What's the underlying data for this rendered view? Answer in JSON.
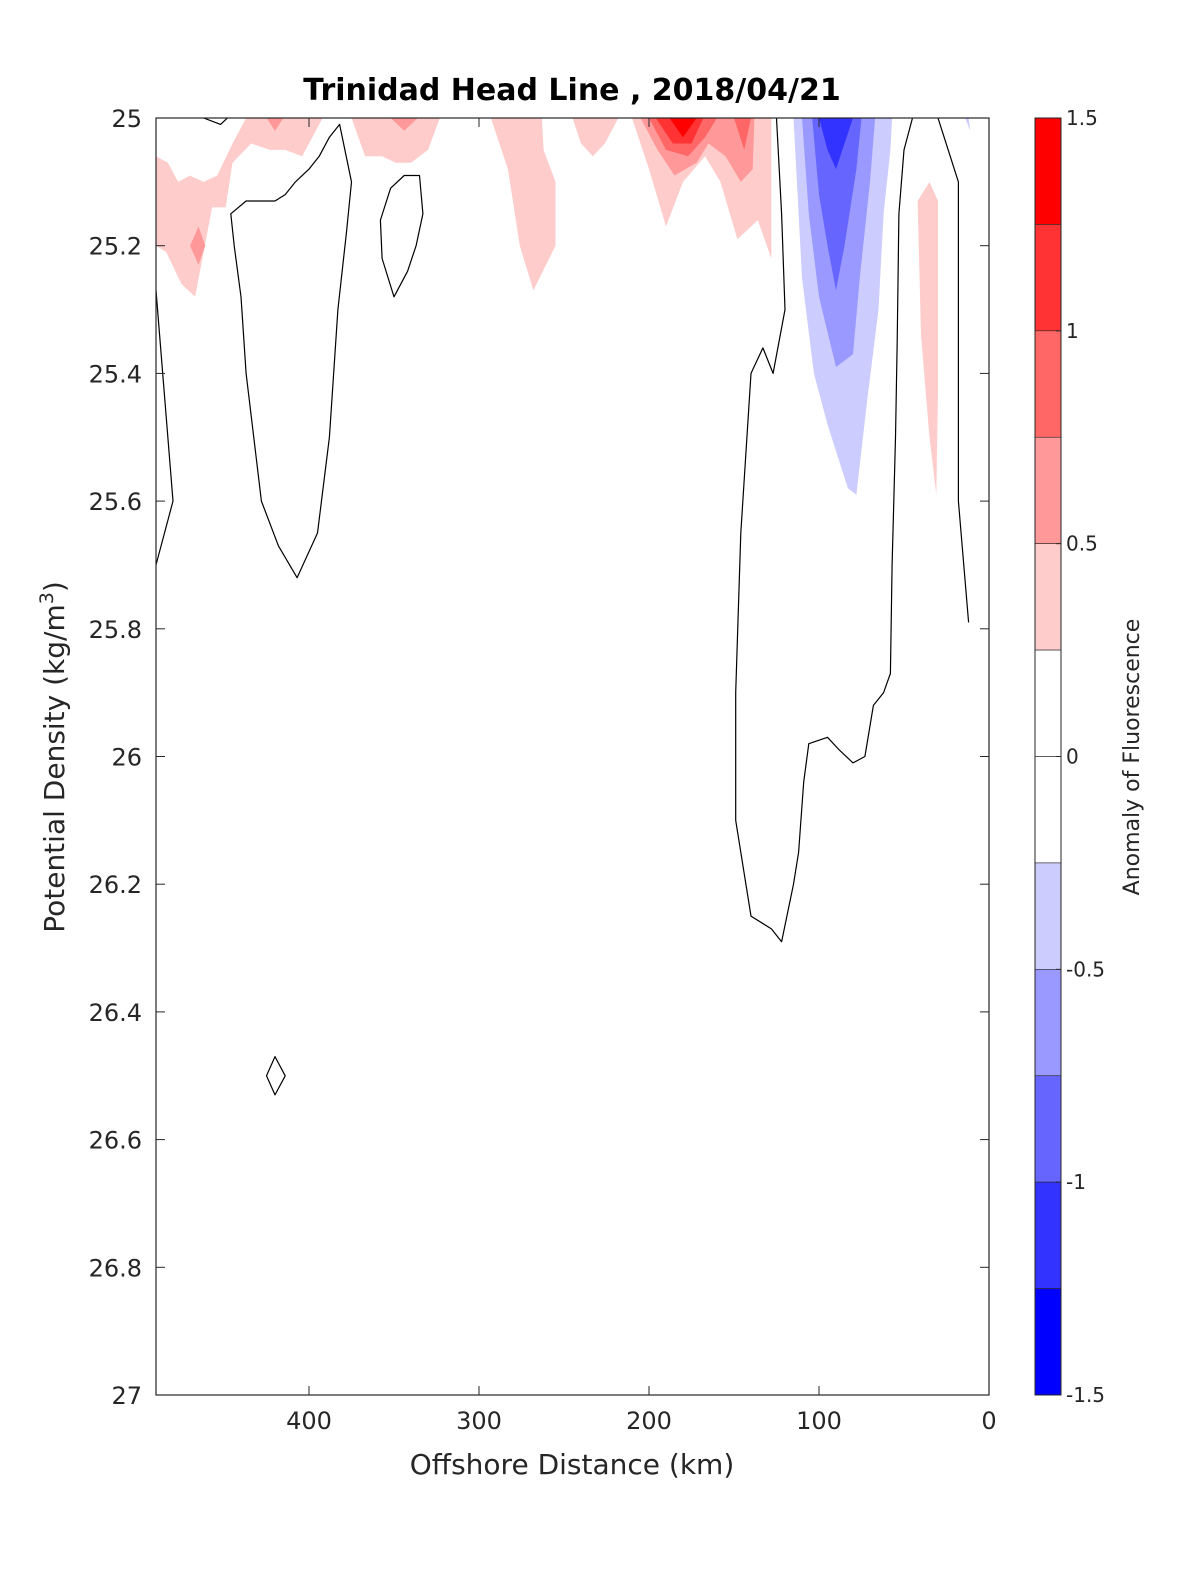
{
  "chart_data": {
    "type": "heatmap",
    "title": "Trinidad Head Line , 2018/04/21",
    "xlabel": "Offshore Distance (km)",
    "ylabel_main": "Potential Density (kg/m",
    "ylabel_sup": "3",
    "ylabel_close": ")",
    "colorbar_label": "Anomaly of Fluorescence",
    "x_reversed": true,
    "xlim": [
      490,
      0
    ],
    "ylim": [
      25,
      27
    ],
    "y_reversed": true,
    "x_ticks": [
      {
        "value": 400,
        "label": "400"
      },
      {
        "value": 300,
        "label": "300"
      },
      {
        "value": 200,
        "label": "200"
      },
      {
        "value": 100,
        "label": "100"
      },
      {
        "value": 0,
        "label": "0"
      }
    ],
    "y_ticks": [
      {
        "value": 25,
        "label": "25"
      },
      {
        "value": 25.2,
        "label": "25.2"
      },
      {
        "value": 25.4,
        "label": "25.4"
      },
      {
        "value": 25.6,
        "label": "25.6"
      },
      {
        "value": 25.8,
        "label": "25.8"
      },
      {
        "value": 26,
        "label": "26"
      },
      {
        "value": 26.2,
        "label": "26.2"
      },
      {
        "value": 26.4,
        "label": "26.4"
      },
      {
        "value": 26.6,
        "label": "26.6"
      },
      {
        "value": 26.8,
        "label": "26.8"
      },
      {
        "value": 27,
        "label": "27"
      }
    ],
    "colorbar": {
      "range": [
        -1.5,
        1.5
      ],
      "levels": [
        {
          "from": 1.25,
          "to": 1.5,
          "color": "#ff0000"
        },
        {
          "from": 1.0,
          "to": 1.25,
          "color": "#ff3333"
        },
        {
          "from": 0.75,
          "to": 1.0,
          "color": "#ff6666"
        },
        {
          "from": 0.5,
          "to": 0.75,
          "color": "#ff9999"
        },
        {
          "from": 0.25,
          "to": 0.5,
          "color": "#ffcccc"
        },
        {
          "from": 0.0,
          "to": 0.25,
          "color": "#ffffff"
        },
        {
          "from": -0.25,
          "to": 0.0,
          "color": "#ffffff"
        },
        {
          "from": -0.5,
          "to": -0.25,
          "color": "#ccccff"
        },
        {
          "from": -0.75,
          "to": -0.5,
          "color": "#9999ff"
        },
        {
          "from": -1.0,
          "to": -0.75,
          "color": "#6666ff"
        },
        {
          "from": -1.25,
          "to": -1.0,
          "color": "#3333ff"
        },
        {
          "from": -1.5,
          "to": -1.25,
          "color": "#0000ff"
        }
      ],
      "ticks": [
        {
          "value": 1.5,
          "label": "1.5"
        },
        {
          "value": 1,
          "label": "1"
        },
        {
          "value": 0.5,
          "label": "0.5"
        },
        {
          "value": 0,
          "label": "0"
        },
        {
          "value": -0.5,
          "label": "-0.5"
        },
        {
          "value": -1,
          "label": "-1"
        },
        {
          "value": -1.5,
          "label": "-1.5"
        }
      ]
    },
    "filled_regions": [
      {
        "level": "0.25 to 0.5",
        "color": "#ffcccc",
        "points": [
          [
            490,
            25.06
          ],
          [
            483,
            25.07
          ],
          [
            477,
            25.1
          ],
          [
            470,
            25.09
          ],
          [
            462,
            25.1
          ],
          [
            454,
            25.09
          ],
          [
            445,
            25.04
          ],
          [
            437,
            25.0
          ],
          [
            420,
            25.0
          ],
          [
            413,
            25.0
          ],
          [
            405,
            25.0
          ],
          [
            398,
            25.0
          ],
          [
            392,
            25.0
          ],
          [
            404,
            25.06
          ],
          [
            414,
            25.05
          ],
          [
            423,
            25.05
          ],
          [
            434,
            25.04
          ],
          [
            445,
            25.07
          ],
          [
            449,
            25.14
          ],
          [
            457,
            25.14
          ],
          [
            462,
            25.21
          ],
          [
            467,
            25.28
          ],
          [
            475,
            25.26
          ],
          [
            484,
            25.21
          ],
          [
            490,
            25.2
          ]
        ]
      },
      {
        "level": "0.5 to 0.75",
        "color": "#ff9999",
        "points": [
          [
            470,
            25.2
          ],
          [
            465,
            25.17
          ],
          [
            461,
            25.2
          ],
          [
            465,
            25.23
          ]
        ]
      },
      {
        "level": "0.5 to 0.75",
        "color": "#ff9999",
        "points": [
          [
            425,
            25.0
          ],
          [
            420,
            25.02
          ],
          [
            415,
            25.0
          ]
        ]
      },
      {
        "level": "0.25 to 0.5",
        "color": "#ffcccc",
        "points": [
          [
            375,
            25.0
          ],
          [
            367,
            25.06
          ],
          [
            357,
            25.06
          ],
          [
            349,
            25.07
          ],
          [
            340,
            25.07
          ],
          [
            330,
            25.05
          ],
          [
            323,
            25.0
          ]
        ]
      },
      {
        "level": "0.5 to 0.75",
        "color": "#ff9999",
        "points": [
          [
            352,
            25.0
          ],
          [
            344,
            25.02
          ],
          [
            336,
            25.0
          ]
        ]
      },
      {
        "level": "0.25 to 0.5",
        "color": "#ffcccc",
        "points": [
          [
            293,
            25.0
          ],
          [
            283,
            25.08
          ],
          [
            276,
            25.2
          ],
          [
            268,
            25.27
          ],
          [
            255,
            25.2
          ],
          [
            255,
            25.1
          ],
          [
            262,
            25.05
          ],
          [
            263,
            25.0
          ]
        ]
      },
      {
        "level": "0.25 to 0.5",
        "color": "#ffcccc",
        "points": [
          [
            245,
            25.0
          ],
          [
            240,
            25.04
          ],
          [
            233,
            25.06
          ],
          [
            226,
            25.04
          ],
          [
            218,
            25.0
          ]
        ]
      },
      {
        "level": "0.25 to 0.5",
        "color": "#ffcccc",
        "points": [
          [
            210,
            25.0
          ],
          [
            200,
            25.08
          ],
          [
            190,
            25.17
          ],
          [
            180,
            25.1
          ],
          [
            167,
            25.06
          ],
          [
            158,
            25.1
          ],
          [
            148,
            25.19
          ],
          [
            136,
            25.16
          ],
          [
            128,
            25.22
          ],
          [
            128,
            25.1
          ],
          [
            128,
            25.0
          ]
        ]
      },
      {
        "level": "0.5 to 0.75",
        "color": "#ff9999",
        "points": [
          [
            205,
            25.0
          ],
          [
            195,
            25.05
          ],
          [
            185,
            25.09
          ],
          [
            172,
            25.07
          ],
          [
            165,
            25.04
          ],
          [
            155,
            25.06
          ],
          [
            146,
            25.1
          ],
          [
            139,
            25.08
          ],
          [
            138,
            25.0
          ]
        ]
      },
      {
        "level": "0.75 to 1.0",
        "color": "#ff6666",
        "points": [
          [
            200,
            25.0
          ],
          [
            190,
            25.05
          ],
          [
            177,
            25.06
          ],
          [
            167,
            25.03
          ],
          [
            160,
            25.0
          ],
          [
            150,
            25.0
          ],
          [
            144,
            25.05
          ],
          [
            140,
            25.0
          ]
        ]
      },
      {
        "level": "1.0 to 1.25",
        "color": "#ff3333",
        "points": [
          [
            196,
            25.0
          ],
          [
            186,
            25.04
          ],
          [
            175,
            25.04
          ],
          [
            168,
            25.0
          ]
        ]
      },
      {
        "level": "1.25 to 1.5",
        "color": "#ff0000",
        "points": [
          [
            188,
            25.0
          ],
          [
            180,
            25.03
          ],
          [
            172,
            25.0
          ]
        ]
      },
      {
        "level": "0.25 to 0.5",
        "color": "#ffcccc",
        "points": [
          [
            42,
            25.13
          ],
          [
            35,
            25.1
          ],
          [
            30,
            25.13
          ],
          [
            30,
            25.43
          ],
          [
            31,
            25.59
          ],
          [
            35,
            25.5
          ],
          [
            40,
            25.34
          ]
        ]
      },
      {
        "level": "-0.5 to -0.25",
        "color": "#ccccff",
        "points": [
          [
            115,
            25.0
          ],
          [
            113,
            25.1
          ],
          [
            110,
            25.25
          ],
          [
            103,
            25.4
          ],
          [
            95,
            25.48
          ],
          [
            83,
            25.58
          ],
          [
            78,
            25.59
          ],
          [
            72,
            25.45
          ],
          [
            65,
            25.3
          ],
          [
            62,
            25.15
          ],
          [
            58,
            25.05
          ],
          [
            57,
            25.0
          ]
        ]
      },
      {
        "level": "-0.75 to -0.5",
        "color": "#9999ff",
        "points": [
          [
            110,
            25.0
          ],
          [
            106,
            25.15
          ],
          [
            100,
            25.28
          ],
          [
            90,
            25.39
          ],
          [
            80,
            25.37
          ],
          [
            76,
            25.25
          ],
          [
            70,
            25.1
          ],
          [
            67,
            25.0
          ]
        ]
      },
      {
        "level": "-1.0 to -0.75",
        "color": "#6666ff",
        "points": [
          [
            104,
            25.0
          ],
          [
            100,
            25.12
          ],
          [
            95,
            25.2
          ],
          [
            90,
            25.27
          ],
          [
            85,
            25.2
          ],
          [
            78,
            25.08
          ],
          [
            75,
            25.0
          ]
        ]
      },
      {
        "level": "-1.25 to -1.0",
        "color": "#3333ff",
        "points": [
          [
            100,
            25.0
          ],
          [
            95,
            25.05
          ],
          [
            90,
            25.08
          ],
          [
            85,
            25.04
          ],
          [
            80,
            25.0
          ]
        ]
      },
      {
        "level": "-0.5 to -0.25",
        "color": "#ccccff",
        "points": [
          [
            14,
            25.0
          ],
          [
            11,
            25.02
          ],
          [
            12,
            25.0
          ]
        ]
      }
    ],
    "zero_contours": [
      {
        "closed": false,
        "points": [
          [
            490,
            25.27
          ],
          [
            480,
            25.6
          ],
          [
            490,
            25.7
          ]
        ]
      },
      {
        "closed": false,
        "points": [
          [
            462,
            25.0
          ],
          [
            452,
            25.01
          ],
          [
            448,
            25.0
          ]
        ]
      },
      {
        "closed": true,
        "points": [
          [
            382,
            25.01
          ],
          [
            375,
            25.1
          ],
          [
            378,
            25.18
          ],
          [
            383,
            25.3
          ],
          [
            388,
            25.5
          ],
          [
            395,
            25.65
          ],
          [
            407,
            25.72
          ],
          [
            418,
            25.67
          ],
          [
            428,
            25.6
          ],
          [
            437,
            25.4
          ],
          [
            440,
            25.28
          ],
          [
            444,
            25.2
          ],
          [
            446,
            25.15
          ],
          [
            437,
            25.13
          ],
          [
            428,
            25.13
          ],
          [
            420,
            25.13
          ],
          [
            414,
            25.12
          ],
          [
            408,
            25.1
          ],
          [
            400,
            25.08
          ],
          [
            394,
            25.06
          ],
          [
            388,
            25.03
          ]
        ]
      },
      {
        "closed": true,
        "points": [
          [
            335,
            25.09
          ],
          [
            344,
            25.09
          ],
          [
            352,
            25.11
          ],
          [
            358,
            25.16
          ],
          [
            357,
            25.22
          ],
          [
            350,
            25.28
          ],
          [
            342,
            25.24
          ],
          [
            337,
            25.2
          ],
          [
            333,
            25.15
          ]
        ]
      },
      {
        "closed": false,
        "points": [
          [
            125,
            25.0
          ],
          [
            122,
            25.15
          ],
          [
            120,
            25.3
          ],
          [
            127,
            25.4
          ],
          [
            133,
            25.36
          ],
          [
            140,
            25.4
          ],
          [
            146,
            25.65
          ],
          [
            149,
            25.9
          ],
          [
            149,
            26.1
          ],
          [
            140,
            26.25
          ],
          [
            128,
            26.27
          ],
          [
            122,
            26.29
          ],
          [
            115,
            26.2
          ],
          [
            112,
            26.15
          ],
          [
            109,
            26.04
          ],
          [
            106,
            25.98
          ],
          [
            95,
            25.97
          ],
          [
            88,
            25.99
          ],
          [
            80,
            26.01
          ],
          [
            73,
            26.0
          ],
          [
            68,
            25.92
          ],
          [
            62,
            25.9
          ],
          [
            58,
            25.87
          ],
          [
            57,
            25.7
          ],
          [
            55,
            25.5
          ],
          [
            54,
            25.35
          ],
          [
            53,
            25.15
          ],
          [
            50,
            25.05
          ],
          [
            45,
            25.0
          ]
        ]
      },
      {
        "closed": false,
        "points": [
          [
            30,
            25.0
          ],
          [
            18,
            25.1
          ],
          [
            18,
            25.6
          ],
          [
            12,
            25.79
          ]
        ]
      },
      {
        "closed": true,
        "points": [
          [
            420,
            26.47
          ],
          [
            414,
            26.5
          ],
          [
            420,
            26.53
          ],
          [
            425,
            26.5
          ]
        ]
      }
    ]
  }
}
